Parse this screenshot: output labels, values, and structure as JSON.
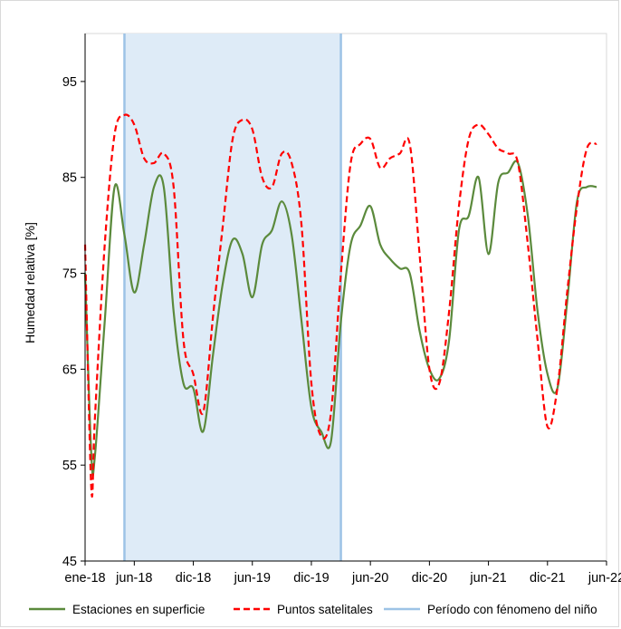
{
  "chart_data": {
    "type": "line",
    "title": "",
    "xlabel": "",
    "ylabel": "Humedad relativa [%]",
    "ylim": [
      45,
      100
    ],
    "yticks": [
      45,
      55,
      65,
      75,
      85,
      95
    ],
    "xlim": [
      "2018-01",
      "2022-06"
    ],
    "xticks": [
      {
        "x": "2018-01",
        "label": "ene-18"
      },
      {
        "x": "2018-06",
        "label": "jun-18"
      },
      {
        "x": "2018-12",
        "label": "dic-18"
      },
      {
        "x": "2019-06",
        "label": "jun-19"
      },
      {
        "x": "2019-12",
        "label": "dic-19"
      },
      {
        "x": "2020-06",
        "label": "jun-20"
      },
      {
        "x": "2020-12",
        "label": "dic-20"
      },
      {
        "x": "2021-06",
        "label": "jun-21"
      },
      {
        "x": "2021-12",
        "label": "dic-21"
      },
      {
        "x": "2022-06",
        "label": "jun-22"
      }
    ],
    "grid": false,
    "legend_position": "bottom",
    "series": [
      {
        "name": "Estaciones en superficie",
        "color": "#5b8a3c",
        "style": "solid",
        "points": [
          [
            "2018-01",
            75.0
          ],
          [
            "2018-01-20",
            56.0
          ],
          [
            "2018-02",
            56.0
          ],
          [
            "2018-03",
            70.0
          ],
          [
            "2018-04",
            84.0
          ],
          [
            "2018-05",
            79.0
          ],
          [
            "2018-06",
            73.0
          ],
          [
            "2018-07",
            78.0
          ],
          [
            "2018-08",
            84.0
          ],
          [
            "2018-09",
            84.0
          ],
          [
            "2018-10",
            71.0
          ],
          [
            "2018-11",
            63.5
          ],
          [
            "2018-12",
            63.0
          ],
          [
            "2019-01",
            58.5
          ],
          [
            "2019-02",
            66.5
          ],
          [
            "2019-03",
            74.0
          ],
          [
            "2019-04",
            78.5
          ],
          [
            "2019-05",
            77.0
          ],
          [
            "2019-06",
            72.5
          ],
          [
            "2019-07",
            78.0
          ],
          [
            "2019-08",
            79.5
          ],
          [
            "2019-09",
            82.5
          ],
          [
            "2019-10",
            79.0
          ],
          [
            "2019-11",
            70.0
          ],
          [
            "2019-12",
            61.0
          ],
          [
            "2020-01",
            58.5
          ],
          [
            "2020-02",
            57.5
          ],
          [
            "2020-03",
            70.0
          ],
          [
            "2020-04",
            78.0
          ],
          [
            "2020-05",
            80.0
          ],
          [
            "2020-06",
            82.0
          ],
          [
            "2020-07",
            78.0
          ],
          [
            "2020-08",
            76.5
          ],
          [
            "2020-09",
            75.5
          ],
          [
            "2020-10",
            75.0
          ],
          [
            "2020-11",
            69.0
          ],
          [
            "2020-12",
            65.0
          ],
          [
            "2021-01",
            64.0
          ],
          [
            "2021-02",
            68.0
          ],
          [
            "2021-03",
            79.5
          ],
          [
            "2021-04",
            81.0
          ],
          [
            "2021-05",
            85.0
          ],
          [
            "2021-06",
            77.0
          ],
          [
            "2021-07",
            84.5
          ],
          [
            "2021-08",
            85.5
          ],
          [
            "2021-09",
            86.5
          ],
          [
            "2021-10",
            81.0
          ],
          [
            "2021-11",
            71.0
          ],
          [
            "2021-12",
            64.5
          ],
          [
            "2022-01",
            63.0
          ],
          [
            "2022-02",
            72.0
          ],
          [
            "2022-03",
            82.5
          ],
          [
            "2022-04",
            84.0
          ],
          [
            "2022-05",
            84.0
          ]
        ]
      },
      {
        "name": "Puntos satelitales",
        "color": "#ff0000",
        "style": "dashed",
        "points": [
          [
            "2018-01",
            78.0
          ],
          [
            "2018-01-20",
            52.5
          ],
          [
            "2018-02",
            60.0
          ],
          [
            "2018-03",
            78.0
          ],
          [
            "2018-04",
            89.5
          ],
          [
            "2018-05",
            91.5
          ],
          [
            "2018-06",
            90.5
          ],
          [
            "2018-07",
            87.0
          ],
          [
            "2018-08",
            86.5
          ],
          [
            "2018-09",
            87.5
          ],
          [
            "2018-10",
            84.0
          ],
          [
            "2018-11",
            68.0
          ],
          [
            "2018-12",
            64.5
          ],
          [
            "2019-01",
            60.5
          ],
          [
            "2019-02",
            70.5
          ],
          [
            "2019-03",
            80.0
          ],
          [
            "2019-04",
            89.0
          ],
          [
            "2019-05",
            91.0
          ],
          [
            "2019-06",
            90.0
          ],
          [
            "2019-07",
            85.0
          ],
          [
            "2019-08",
            84.0
          ],
          [
            "2019-09",
            87.5
          ],
          [
            "2019-10",
            86.5
          ],
          [
            "2019-11",
            80.0
          ],
          [
            "2019-12",
            63.5
          ],
          [
            "2020-01",
            58.0
          ],
          [
            "2020-02",
            60.5
          ],
          [
            "2020-03",
            75.0
          ],
          [
            "2020-04",
            86.5
          ],
          [
            "2020-05",
            88.5
          ],
          [
            "2020-06",
            89.0
          ],
          [
            "2020-07",
            86.0
          ],
          [
            "2020-08",
            87.0
          ],
          [
            "2020-09",
            87.5
          ],
          [
            "2020-10",
            88.5
          ],
          [
            "2020-11",
            77.0
          ],
          [
            "2020-12",
            65.0
          ],
          [
            "2021-01",
            63.5
          ],
          [
            "2021-02",
            71.0
          ],
          [
            "2021-03",
            82.0
          ],
          [
            "2021-04",
            89.0
          ],
          [
            "2021-05",
            90.5
          ],
          [
            "2021-06",
            89.5
          ],
          [
            "2021-07",
            88.0
          ],
          [
            "2021-08",
            87.5
          ],
          [
            "2021-09",
            86.5
          ],
          [
            "2021-10",
            78.0
          ],
          [
            "2021-11",
            68.0
          ],
          [
            "2021-12",
            59.0
          ],
          [
            "2022-01",
            63.0
          ],
          [
            "2022-02",
            73.0
          ],
          [
            "2022-03",
            82.0
          ],
          [
            "2022-04",
            88.0
          ],
          [
            "2022-05",
            88.5
          ]
        ]
      }
    ],
    "shaded_period": {
      "name": "Período con fénomeno del niño",
      "x_start": "2018-05",
      "x_end": "2020-03",
      "color": "#9dc3e6",
      "fill": "#deebf7"
    }
  }
}
